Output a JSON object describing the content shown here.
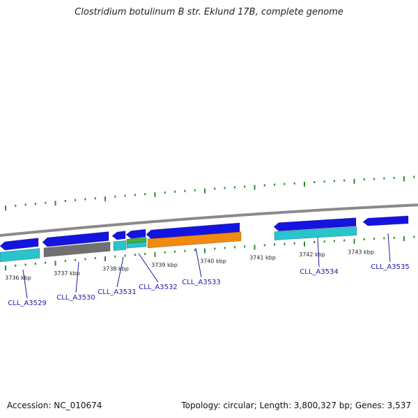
{
  "title": "Clostridium botulinum B str. Eklund 17B, complete genome",
  "footer": {
    "accession": "Accession: NC_010674",
    "summary": "Topology: circular; Length: 3,800,327 bp; Genes: 3,537"
  },
  "colors": {
    "backbone": "#8a8a8a",
    "cds": "#1414e0",
    "rna": "#29c4cc",
    "pseudo": "#707070",
    "orange": "#f08a10",
    "green": "#3cb43c",
    "tick": "#2a8a2a",
    "label": "#1a1aa6"
  },
  "kbp_labels": [
    "3736 kbp",
    "3737 kbp",
    "3738 kbp",
    "3739 kbp",
    "3740 kbp",
    "3741 kbp",
    "3742 kbp",
    "3743 kbp"
  ],
  "genes": [
    "CLL_A3529",
    "CLL_A3530",
    "CLL_A3531",
    "CLL_A3532",
    "CLL_A3533",
    "CLL_A3534",
    "CLL_A3535"
  ]
}
